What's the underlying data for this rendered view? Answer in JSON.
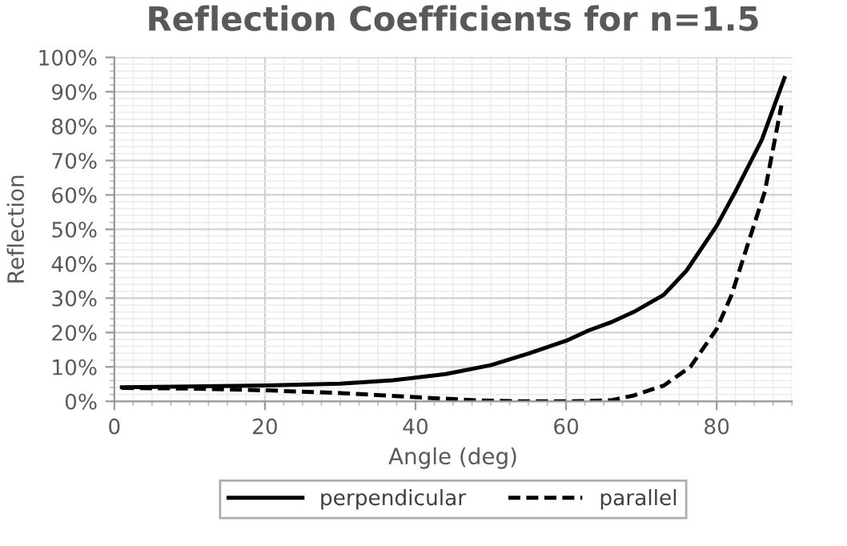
{
  "chart_data": {
    "type": "line",
    "title": "Reflection Coefficients for n=1.5",
    "xlabel": "Angle (deg)",
    "ylabel": "Reflection",
    "series": [
      {
        "name": "perpendicular",
        "color": "#000000",
        "line_style": "solid",
        "x": [
          1,
          10,
          20,
          30,
          37,
          44,
          50,
          55,
          60,
          63,
          66,
          69,
          73,
          76,
          80,
          82.5,
          86,
          89
        ],
        "values": [
          4.1,
          4.3,
          4.6,
          5.1,
          6.1,
          7.9,
          10.5,
          13.9,
          17.6,
          20.6,
          23,
          26,
          31,
          38,
          51,
          61,
          76,
          94
        ]
      },
      {
        "name": "parallel",
        "color": "#000000",
        "line_style": "dashed",
        "x": [
          1,
          10,
          20,
          30,
          40,
          48,
          54,
          60,
          63,
          66,
          69,
          73,
          76.5,
          80,
          82,
          83.6,
          86.4,
          88.6
        ],
        "values": [
          3.9,
          3.7,
          3.2,
          2.4,
          1.2,
          0.3,
          0,
          0,
          0.1,
          0.3,
          1.7,
          4.6,
          10,
          21,
          31,
          42,
          61,
          86
        ]
      }
    ],
    "xlim": [
      0,
      90
    ],
    "xticks": [
      0,
      20,
      40,
      60,
      80
    ],
    "ylim": [
      0,
      100
    ],
    "yticks": [
      {
        "value": 0,
        "label": "0%"
      },
      {
        "value": 10,
        "label": "10%"
      },
      {
        "value": 20,
        "label": "20%"
      },
      {
        "value": 30,
        "label": "30%"
      },
      {
        "value": 40,
        "label": "40%"
      },
      {
        "value": 50,
        "label": "50%"
      },
      {
        "value": 60,
        "label": "60%"
      },
      {
        "value": 70,
        "label": "70%"
      },
      {
        "value": 80,
        "label": "80%"
      },
      {
        "value": 90,
        "label": "90%"
      },
      {
        "value": 100,
        "label": "100%"
      }
    ],
    "grid": true,
    "legend": "bottom"
  }
}
